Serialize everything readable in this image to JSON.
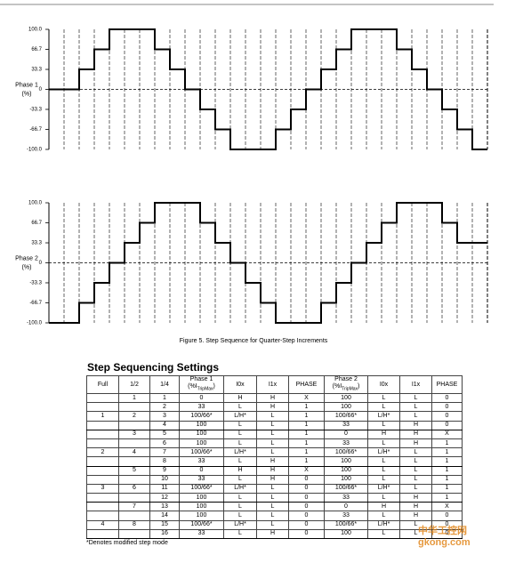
{
  "chart_data": [
    {
      "type": "step",
      "ylabel": [
        "Phase 1",
        "(%)"
      ],
      "xlim": [
        0,
        29
      ],
      "ylim": [
        -100,
        100
      ],
      "yticks": [
        {
          "value": 100,
          "label": "100.0"
        },
        66.7,
        33.3,
        0,
        -33.3,
        -66.7,
        {
          "value": -100,
          "label": "-100.0"
        }
      ],
      "color": "#000000",
      "values": [
        0,
        0,
        33.3,
        66.7,
        100,
        100,
        100,
        66.7,
        33.3,
        0,
        -33.3,
        -66.7,
        -100,
        -100,
        -100,
        -66.7,
        -33.3,
        0,
        33.3,
        66.7,
        100,
        100,
        100,
        66.7,
        33.3,
        0,
        -33.3,
        -66.7,
        -100
      ]
    },
    {
      "type": "step",
      "ylabel": [
        "Phase 2",
        "(%)"
      ],
      "xlim": [
        0,
        29
      ],
      "ylim": [
        -100,
        100
      ],
      "yticks": [
        {
          "value": 100,
          "label": "100.0"
        },
        66.7,
        33.3,
        0,
        -33.3,
        -66.7,
        {
          "value": -100,
          "label": "-100.0"
        }
      ],
      "color": "#000000",
      "values": [
        -100,
        -100,
        -66.7,
        -33.3,
        0,
        33.3,
        66.7,
        100,
        100,
        100,
        66.7,
        33.3,
        0,
        -33.3,
        -66.7,
        -100,
        -100,
        -100,
        -66.7,
        -33.3,
        0,
        33.3,
        66.7,
        100,
        100,
        100,
        66.7,
        33.3,
        33.3
      ]
    }
  ],
  "caption": "Figure 5. Step Sequence for Quarter-Step Increments",
  "table": {
    "title": "Step Sequencing Settings",
    "headers": [
      "Full",
      "1/2",
      "1/4",
      {
        "text": "Phase 1",
        "unit": "(%I",
        "sub": "TripMax",
        "close": ")"
      },
      "I0x",
      "I1x",
      "PHASE",
      {
        "text": "Phase 2",
        "unit": "(%I",
        "sub": "TripMax",
        "close": ")"
      },
      "I0x",
      "I1x",
      "PHASE"
    ],
    "rows": [
      [
        null,
        "1",
        "1",
        "0",
        "H",
        "H",
        "X",
        "100",
        "L",
        "L",
        "0"
      ],
      [
        null,
        null,
        "2",
        "33",
        "L",
        "H",
        "1",
        "100",
        "L",
        "L",
        "0"
      ],
      [
        "1",
        "2",
        "3",
        "100/66*",
        "L/H*",
        "L",
        "1",
        "100/66*",
        "L/H*",
        "L",
        "0"
      ],
      [
        null,
        null,
        "4",
        "100",
        "L",
        "L",
        "1",
        "33",
        "L",
        "H",
        "0"
      ],
      [
        null,
        "3",
        "5",
        "100",
        "L",
        "L",
        "1",
        "0",
        "H",
        "H",
        "X"
      ],
      [
        null,
        null,
        "6",
        "100",
        "L",
        "L",
        "1",
        "33",
        "L",
        "H",
        "1"
      ],
      [
        "2",
        "4",
        "7",
        "100/66*",
        "L/H*",
        "L",
        "1",
        "100/66*",
        "L/H*",
        "L",
        "1"
      ],
      [
        null,
        null,
        "8",
        "33",
        "L",
        "H",
        "1",
        "100",
        "L",
        "L",
        "1"
      ],
      [
        null,
        "5",
        "9",
        "0",
        "H",
        "H",
        "X",
        "100",
        "L",
        "L",
        "1"
      ],
      [
        null,
        null,
        "10",
        "33",
        "L",
        "H",
        "0",
        "100",
        "L",
        "L",
        "1"
      ],
      [
        "3",
        "6",
        "11",
        "100/66*",
        "L/H*",
        "L",
        "0",
        "100/66*",
        "L/H*",
        "L",
        "1"
      ],
      [
        null,
        null,
        "12",
        "100",
        "L",
        "L",
        "0",
        "33",
        "L",
        "H",
        "1"
      ],
      [
        null,
        "7",
        "13",
        "100",
        "L",
        "L",
        "0",
        "0",
        "H",
        "H",
        "X"
      ],
      [
        null,
        null,
        "14",
        "100",
        "L",
        "L",
        "0",
        "33",
        "L",
        "H",
        "0"
      ],
      [
        "4",
        "8",
        "15",
        "100/66*",
        "L/H*",
        "L",
        "0",
        "100/66*",
        "L/H*",
        "L",
        "0"
      ],
      [
        null,
        null,
        "16",
        "33",
        "L",
        "H",
        "0",
        "100",
        "L",
        "L",
        "0"
      ]
    ]
  },
  "footnote": "*Denotes modified step mode",
  "watermark": [
    "中华工控网",
    "gkong.com"
  ]
}
